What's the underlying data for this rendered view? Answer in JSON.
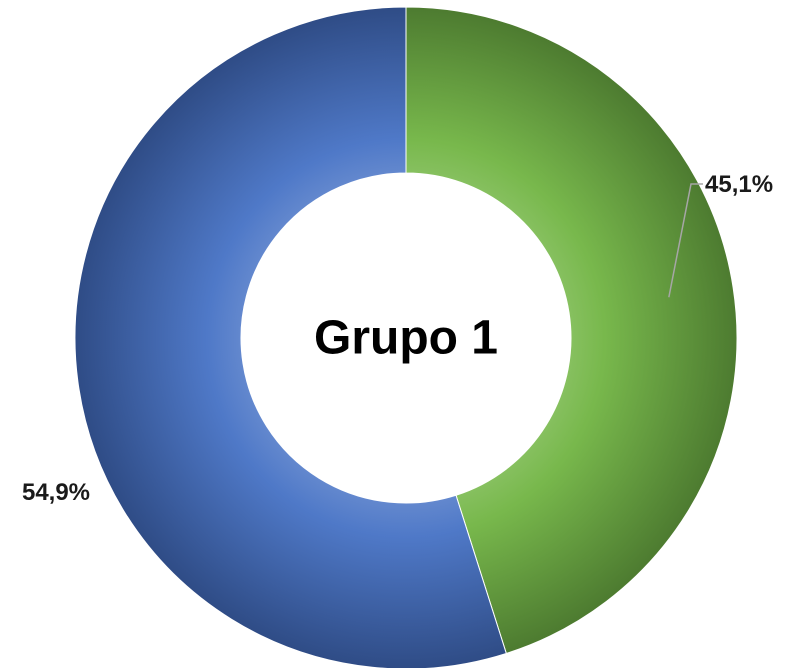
{
  "chart_data": {
    "type": "pie",
    "variant": "donut",
    "center_label": "Grupo 1",
    "slices": [
      {
        "value": 45.1,
        "label": "45,1%",
        "color": "#70ad47"
      },
      {
        "value": 54.9,
        "label": "54,9%",
        "color": "#4472c4"
      }
    ],
    "start": "top",
    "direction": "clockwise",
    "legend": "none"
  }
}
